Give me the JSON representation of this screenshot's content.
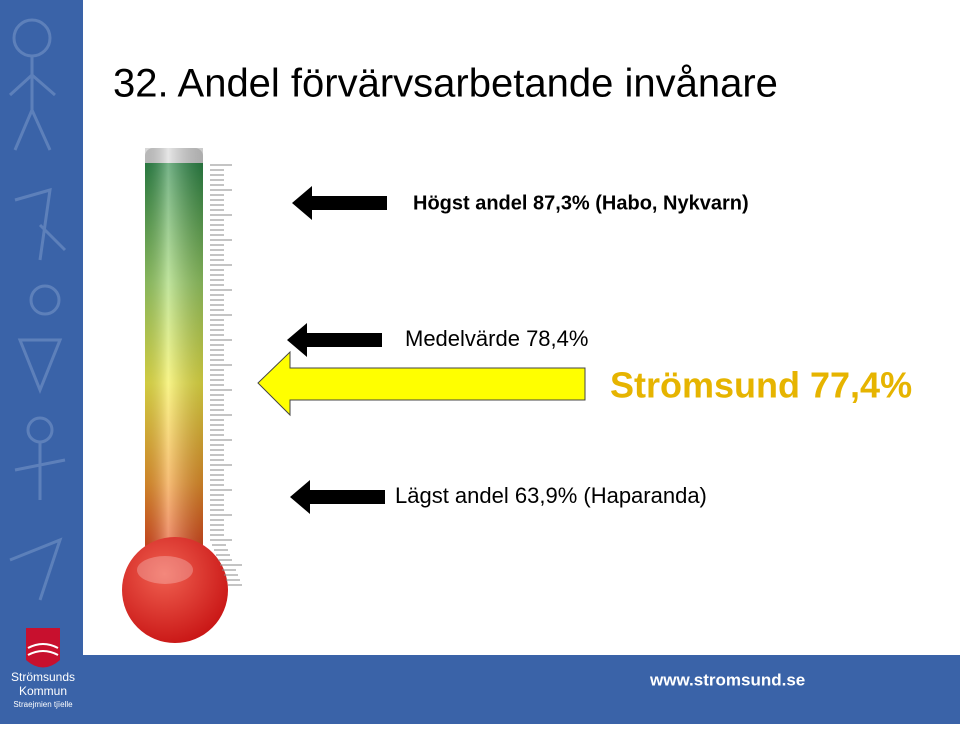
{
  "header": {
    "title": "32. Andel förvärvsarbetande invånare"
  },
  "labels": {
    "highest": "Högst andel 87,3% (Habo, Nykvarn)",
    "average": "Medelvärde 78,4%",
    "local": "Strömsund 77,4%",
    "lowest": "Lägst andel 63,9% (Haparanda)"
  },
  "logo": {
    "name_line1": "Strömsunds",
    "name_line2": "Kommun",
    "sami_name": "Straejmien tjïelle"
  },
  "footer": {
    "url": "www.stromsund.se"
  }
}
